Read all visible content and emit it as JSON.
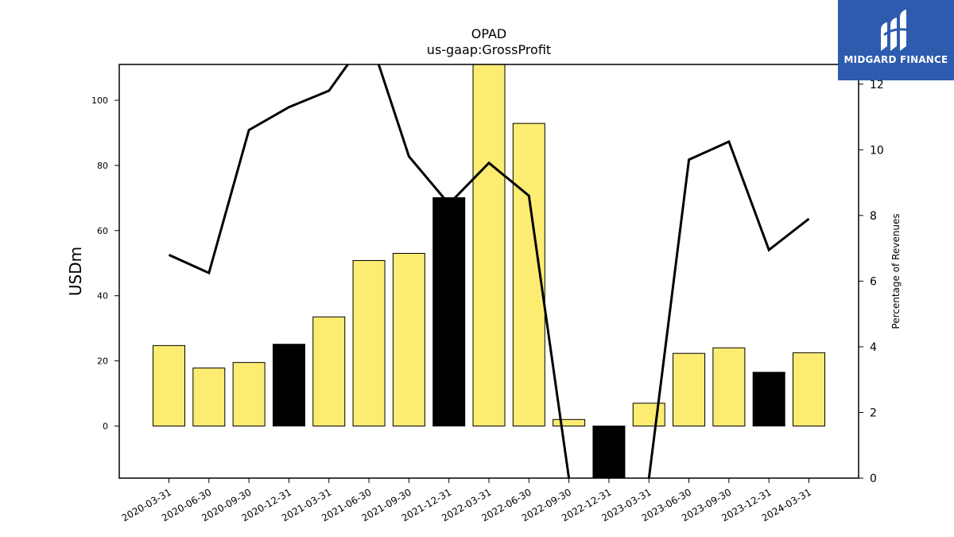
{
  "chart_data": {
    "type": "bar",
    "title": "OPAD",
    "subtitle": "us-gaap:GrossProfit",
    "ylabel": "USDm",
    "y2label": "Percentage of Revenues",
    "ylim": [
      -16,
      111
    ],
    "y2lim": [
      0,
      12.6
    ],
    "yticks": [
      0,
      20,
      40,
      60,
      80,
      100
    ],
    "y2ticks": [
      0,
      2,
      4,
      6,
      8,
      10,
      12
    ],
    "categories": [
      "2020-03-31",
      "2020-06-30",
      "2020-09-30",
      "2020-12-31",
      "2021-03-31",
      "2021-06-30",
      "2021-09-30",
      "2021-12-31",
      "2022-03-31",
      "2022-06-30",
      "2022-09-30",
      "2022-12-31",
      "2023-03-31",
      "2023-06-30",
      "2023-09-30",
      "2023-12-31",
      "2024-03-31"
    ],
    "series": [
      {
        "type": "bar",
        "values": [
          24.7,
          17.8,
          19.5,
          25.1,
          33.5,
          50.8,
          53.0,
          70.1,
          111.0,
          92.9,
          2.0,
          -20.0,
          7.0,
          22.3,
          24.0,
          16.5,
          22.5
        ],
        "colors": [
          "#fcec72",
          "#fcec72",
          "#fcec72",
          "#000000",
          "#fcec72",
          "#fcec72",
          "#fcec72",
          "#000000",
          "#fcec72",
          "#fcec72",
          "#fcec72",
          "#000000",
          "#fcec72",
          "#fcec72",
          "#fcec72",
          "#000000",
          "#fcec72"
        ]
      },
      {
        "type": "line",
        "axis": "right",
        "values": [
          6.8,
          6.25,
          10.6,
          11.3,
          11.8,
          13.5,
          9.8,
          8.35,
          9.6,
          8.6,
          0,
          -1.2,
          0,
          9.7,
          10.25,
          6.95,
          7.9
        ]
      }
    ],
    "grid": false,
    "legend": "none"
  },
  "logo": {
    "text": "MIDGARD FINANCE"
  },
  "colors": {
    "highlight_bar": "#fcec72",
    "dark_bar": "#000000",
    "line": "#000000",
    "logo_bg": "#2d5bae"
  }
}
